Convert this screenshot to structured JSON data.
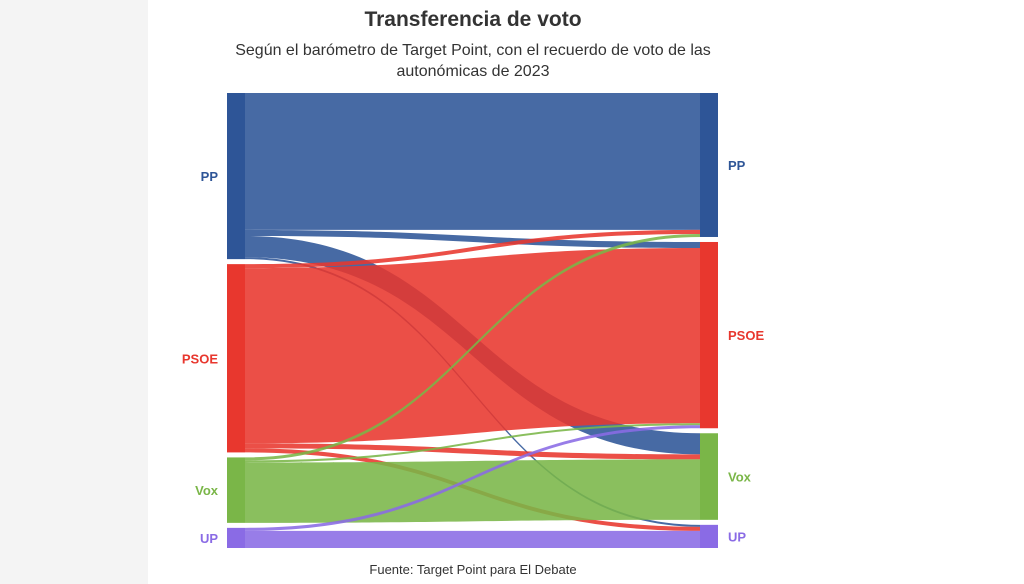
{
  "chart_data": {
    "type": "sankey",
    "title": "Transferencia de voto",
    "subtitle": "Según el barómetro de Target Point, con el recuerdo de voto de las autonómicas de 2023",
    "source": "Fuente: Target Point para El Debate",
    "nodes_left": [
      {
        "id": "PP",
        "label": "PP",
        "color": "#2e5597"
      },
      {
        "id": "PSOE",
        "label": "PSOE",
        "color": "#e8372e"
      },
      {
        "id": "Vox",
        "label": "Vox",
        "color": "#7ab648"
      },
      {
        "id": "UP",
        "label": "UP",
        "color": "#8a6be5"
      }
    ],
    "nodes_right": [
      {
        "id": "PP",
        "label": "PP",
        "color": "#2e5597"
      },
      {
        "id": "PSOE",
        "label": "PSOE",
        "color": "#e8372e"
      },
      {
        "id": "Vox",
        "label": "Vox",
        "color": "#7ab648"
      },
      {
        "id": "UP",
        "label": "UP",
        "color": "#8a6be5"
      }
    ],
    "flows": [
      {
        "from": "PP",
        "to": "PP",
        "value": 136
      },
      {
        "from": "PP",
        "to": "PSOE",
        "value": 6
      },
      {
        "from": "PP",
        "to": "Vox",
        "value": 21
      },
      {
        "from": "PP",
        "to": "UP",
        "value": 2
      },
      {
        "from": "PSOE",
        "to": "PP",
        "value": 4
      },
      {
        "from": "PSOE",
        "to": "PSOE",
        "value": 174
      },
      {
        "from": "PSOE",
        "to": "Vox",
        "value": 5
      },
      {
        "from": "PSOE",
        "to": "UP",
        "value": 4
      },
      {
        "from": "Vox",
        "to": "PP",
        "value": 3
      },
      {
        "from": "Vox",
        "to": "PSOE",
        "value": 2
      },
      {
        "from": "Vox",
        "to": "Vox",
        "value": 60
      },
      {
        "from": "UP",
        "to": "PSOE",
        "value": 3
      },
      {
        "from": "UP",
        "to": "UP",
        "value": 17
      }
    ]
  }
}
